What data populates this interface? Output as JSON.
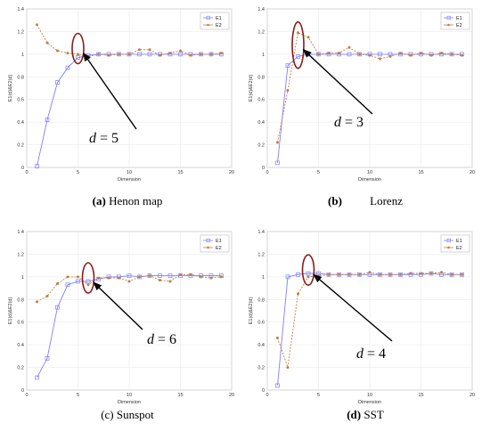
{
  "chart_data": [
    {
      "type": "line",
      "caption_tag": "(a)",
      "caption_text": "Henon map",
      "xlabel": "Dimension",
      "ylabel": "E1(d)&E2(d)",
      "xlim": [
        0,
        20
      ],
      "ylim": [
        0,
        1.4
      ],
      "xticks": [
        0,
        5,
        10,
        15,
        20
      ],
      "yticks": [
        0,
        0.2,
        0.4,
        0.6,
        0.8,
        1,
        1.2,
        1.4
      ],
      "grid": true,
      "legend": "top-right",
      "x": [
        1,
        2,
        3,
        4,
        5,
        6,
        7,
        8,
        9,
        10,
        11,
        12,
        13,
        14,
        15,
        16,
        17,
        18,
        19
      ],
      "series": [
        {
          "name": "E1",
          "color": "#8080ff",
          "marker": "square",
          "values": [
            0.01,
            0.42,
            0.75,
            0.88,
            0.97,
            0.99,
            1.0,
            1.0,
            1.0,
            1.0,
            1.0,
            1.0,
            1.0,
            1.0,
            1.0,
            1.0,
            1.0,
            1.0,
            1.0
          ]
        },
        {
          "name": "E2",
          "color": "#c08040",
          "marker": "star",
          "values": [
            1.26,
            1.1,
            1.03,
            1.01,
            1.0,
            0.98,
            1.0,
            0.99,
            1.0,
            1.0,
            1.04,
            1.04,
            0.99,
            1.01,
            1.03,
            0.99,
            1.0,
            1.0,
            1.01
          ]
        }
      ],
      "annotation": {
        "text": "d = 5",
        "x": 5,
        "y": 1.05
      }
    },
    {
      "type": "line",
      "caption_tag": "(b)",
      "caption_text": "Lorenz",
      "xlabel": "Dimension",
      "ylabel": "E1(d)&E2(d)",
      "xlim": [
        0,
        20
      ],
      "ylim": [
        0,
        1.4
      ],
      "xticks": [
        0,
        5,
        10,
        15,
        20
      ],
      "yticks": [
        0,
        0.2,
        0.4,
        0.6,
        0.8,
        1,
        1.2,
        1.4
      ],
      "grid": true,
      "legend": "top-right",
      "x": [
        1,
        2,
        3,
        4,
        5,
        6,
        7,
        8,
        9,
        10,
        11,
        12,
        13,
        14,
        15,
        16,
        17,
        18,
        19
      ],
      "series": [
        {
          "name": "E1",
          "color": "#8080ff",
          "marker": "square",
          "values": [
            0.04,
            0.9,
            0.98,
            1.0,
            1.0,
            1.0,
            1.0,
            1.0,
            1.0,
            1.0,
            1.0,
            1.0,
            1.0,
            1.0,
            1.0,
            1.0,
            1.0,
            1.0,
            1.0
          ]
        },
        {
          "name": "E2",
          "color": "#c08040",
          "marker": "star",
          "values": [
            0.22,
            0.68,
            1.19,
            1.15,
            1.0,
            1.01,
            1.01,
            1.06,
            1.0,
            0.99,
            0.96,
            0.98,
            1.01,
            0.99,
            1.01,
            0.99,
            1.01,
            1.0,
            0.99
          ]
        }
      ],
      "annotation": {
        "text": "d = 3",
        "x": 3,
        "y": 1.08
      }
    },
    {
      "type": "line",
      "caption_tag": "(c)",
      "caption_text": "Sunspot",
      "xlabel": "Dimension",
      "ylabel": "E1(d)&E2(d)",
      "xlim": [
        0,
        20
      ],
      "ylim": [
        0,
        1.4
      ],
      "xticks": [
        0,
        5,
        10,
        15,
        20
      ],
      "yticks": [
        0,
        0.2,
        0.4,
        0.6,
        0.8,
        1,
        1.2,
        1.4
      ],
      "grid": true,
      "legend": "top-right",
      "x": [
        1,
        2,
        3,
        4,
        5,
        6,
        7,
        8,
        9,
        10,
        11,
        12,
        13,
        14,
        15,
        16,
        17,
        18,
        19
      ],
      "series": [
        {
          "name": "E1",
          "color": "#8080ff",
          "marker": "square",
          "values": [
            0.11,
            0.28,
            0.73,
            0.93,
            0.96,
            0.96,
            0.98,
            1.0,
            1.0,
            1.01,
            1.0,
            1.01,
            1.01,
            1.01,
            1.01,
            1.01,
            1.01,
            1.01,
            1.01
          ]
        },
        {
          "name": "E2",
          "color": "#c08040",
          "marker": "star",
          "values": [
            0.78,
            0.83,
            0.94,
            1.0,
            1.0,
            0.93,
            0.99,
            0.99,
            0.99,
            0.96,
            1.0,
            1.01,
            0.97,
            0.96,
            1.02,
            1.02,
            1.0,
            0.99,
            1.0
          ]
        }
      ],
      "annotation": {
        "text": "d = 6",
        "x": 6,
        "y": 0.99
      }
    },
    {
      "type": "line",
      "caption_tag": "(d)",
      "caption_text": "SST",
      "xlabel": "Dimension",
      "ylabel": "E1(d)&E2(d)",
      "xlim": [
        0,
        20
      ],
      "ylim": [
        0,
        1.4
      ],
      "xticks": [
        0,
        5,
        10,
        15,
        20
      ],
      "yticks": [
        0,
        0.2,
        0.4,
        0.6,
        0.8,
        1,
        1.2,
        1.4
      ],
      "grid": true,
      "legend": "top-right",
      "x": [
        1,
        2,
        3,
        4,
        5,
        6,
        7,
        8,
        9,
        10,
        11,
        12,
        13,
        14,
        15,
        16,
        17,
        18,
        19
      ],
      "series": [
        {
          "name": "E1",
          "color": "#8080ff",
          "marker": "square",
          "values": [
            0.04,
            1.0,
            1.02,
            1.03,
            1.03,
            1.02,
            1.02,
            1.02,
            1.02,
            1.02,
            1.02,
            1.02,
            1.02,
            1.02,
            1.02,
            1.03,
            1.02,
            1.02,
            1.02
          ]
        },
        {
          "name": "E2",
          "color": "#c08040",
          "marker": "star",
          "values": [
            0.46,
            0.2,
            0.85,
            1.0,
            1.01,
            1.02,
            1.02,
            1.02,
            1.02,
            1.04,
            1.02,
            1.02,
            1.02,
            1.03,
            1.03,
            1.03,
            1.04,
            1.02,
            1.02
          ]
        }
      ],
      "annotation": {
        "text": "d = 4",
        "x": 4,
        "y": 1.06
      }
    }
  ]
}
